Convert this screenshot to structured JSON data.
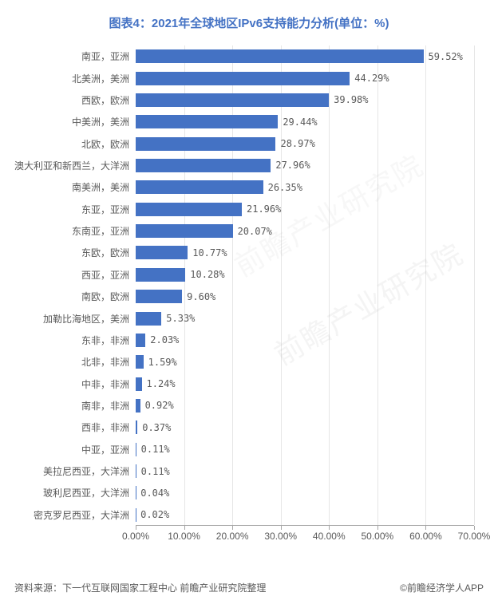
{
  "title": "图表4：2021年全球地区IPv6支持能力分析(单位：%)",
  "chart": {
    "type": "bar-horizontal",
    "bar_color": "#4472c4",
    "grid_color": "#e6e6e6",
    "axis_color": "#a6a6a6",
    "label_color": "#595959",
    "background_color": "#ffffff",
    "title_color": "#4472c4",
    "title_fontsize": 15,
    "label_fontsize": 12,
    "xlim": [
      0,
      70
    ],
    "xtick_step": 10,
    "xtick_format": "0.00%",
    "bar_height_ratio": 0.62,
    "categories": [
      "南亚，亚洲",
      "北美洲，美洲",
      "西欧，欧洲",
      "中美洲，美洲",
      "北欧，欧洲",
      "澳大利亚和新西兰，大洋洲",
      "南美洲，美洲",
      "东亚，亚洲",
      "东南亚，亚洲",
      "东欧，欧洲",
      "西亚，亚洲",
      "南欧，欧洲",
      "加勒比海地区，美洲",
      "东非，非洲",
      "北非，非洲",
      "中非，非洲",
      "南非，非洲",
      "西非，非洲",
      "中亚，亚洲",
      "美拉尼西亚，大洋洲",
      "玻利尼西亚，大洋洲",
      "密克罗尼西亚，大洋洲"
    ],
    "values": [
      59.52,
      44.29,
      39.98,
      29.44,
      28.97,
      27.96,
      26.35,
      21.96,
      20.07,
      10.77,
      10.28,
      9.6,
      5.33,
      2.03,
      1.59,
      1.24,
      0.92,
      0.37,
      0.11,
      0.11,
      0.04,
      0.02
    ],
    "value_labels": [
      "59.52%",
      "44.29%",
      "39.98%",
      "29.44%",
      "28.97%",
      "27.96%",
      "26.35%",
      "21.96%",
      "20.07%",
      "10.77%",
      "10.28%",
      "9.60%",
      "5.33%",
      "2.03%",
      "1.59%",
      "1.24%",
      "0.92%",
      "0.37%",
      "0.11%",
      "0.11%",
      "0.04%",
      "0.02%"
    ],
    "x_ticks": [
      0,
      10,
      20,
      30,
      40,
      50,
      60,
      70
    ],
    "x_tick_labels": [
      "0.00%",
      "10.00%",
      "20.00%",
      "30.00%",
      "40.00%",
      "50.00%",
      "60.00%",
      "70.00%"
    ]
  },
  "footer": {
    "source": "资料来源：下一代互联网国家工程中心 前瞻产业研究院整理",
    "brand": "©前瞻经济学人APP"
  },
  "watermark": "前瞻产业研究院"
}
